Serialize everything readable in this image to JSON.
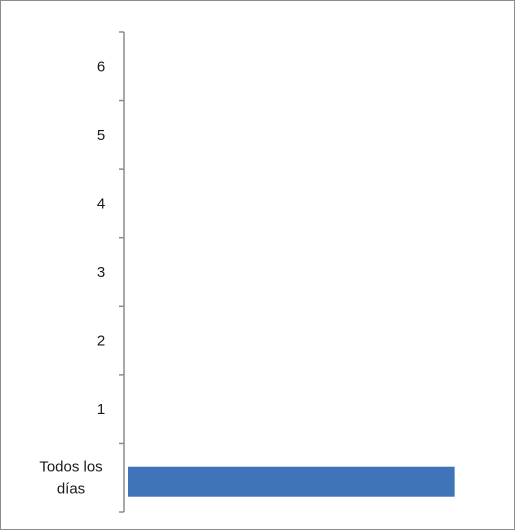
{
  "chart_data": {
    "type": "bar",
    "orientation": "horizontal",
    "categories": [
      "Todos los días",
      "1",
      "2",
      "3",
      "4",
      "5",
      "6"
    ],
    "values": [
      1,
      null,
      null,
      null,
      null,
      null,
      null
    ],
    "xlim": [
      0,
      1
    ],
    "colors": {
      "bar": "#3f74b9",
      "axis": "#8c8c8c"
    },
    "grid": false,
    "legend": "none"
  }
}
